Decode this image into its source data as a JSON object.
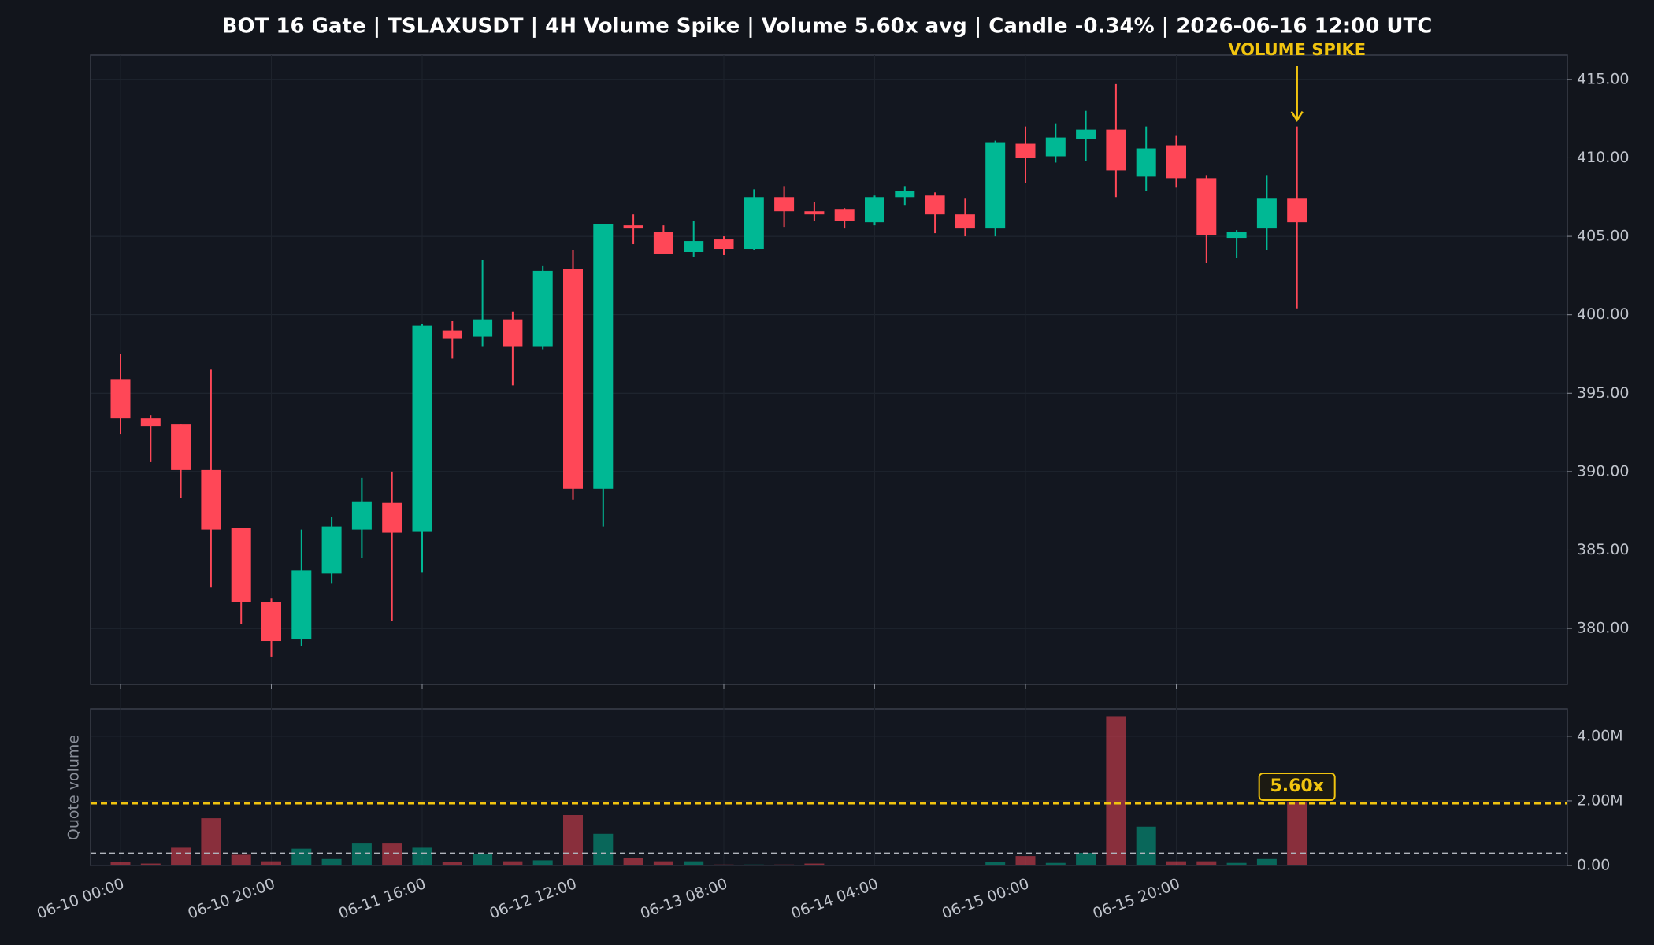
{
  "chart_data": [
    {
      "type": "candlestick",
      "title": "BOT 16 Gate | TSLAXUSDT | 4H Volume Spike | Volume 5.60x avg | Candle -0.34% | 2026-06-16 12:00 UTC",
      "categories": [
        "06-10 00:00",
        null,
        null,
        null,
        null,
        "06-10 20:00",
        null,
        null,
        null,
        null,
        "06-11 16:00",
        null,
        null,
        null,
        null,
        "06-12 12:00",
        null,
        null,
        null,
        null,
        "06-13 08:00",
        null,
        null,
        null,
        null,
        "06-14 04:00",
        null,
        null,
        null,
        null,
        "06-15 00:00",
        null,
        null,
        null,
        null,
        "06-15 20:00",
        null,
        null,
        null,
        null
      ],
      "open": [
        395.9,
        393.4,
        393.0,
        390.1,
        386.4,
        381.7,
        379.3,
        383.5,
        386.3,
        388.0,
        386.2,
        399.0,
        398.6,
        399.7,
        398.0,
        402.9,
        388.9,
        405.7,
        405.3,
        404.0,
        404.8,
        404.2,
        407.5,
        406.6,
        406.7,
        405.9,
        407.5,
        407.6,
        406.4,
        405.5,
        410.9,
        410.1,
        411.2,
        411.8,
        408.8,
        410.8,
        408.7,
        404.9,
        405.5,
        407.4
      ],
      "high": [
        397.5,
        393.6,
        393.0,
        396.5,
        386.3,
        381.9,
        386.3,
        387.1,
        389.6,
        390.0,
        399.4,
        399.6,
        403.5,
        400.2,
        403.1,
        404.1,
        405.8,
        406.4,
        405.7,
        406.0,
        405.0,
        408.0,
        408.2,
        407.2,
        406.8,
        407.6,
        408.2,
        407.8,
        407.4,
        411.1,
        412.0,
        412.2,
        413.0,
        414.7,
        412.0,
        411.4,
        408.9,
        405.4,
        408.9,
        412.0
      ],
      "low": [
        392.4,
        390.6,
        388.3,
        382.6,
        380.3,
        378.2,
        378.9,
        382.9,
        384.5,
        380.5,
        383.6,
        397.2,
        398.0,
        395.5,
        397.8,
        388.2,
        386.5,
        404.5,
        403.9,
        403.7,
        403.8,
        404.1,
        405.6,
        406.0,
        405.5,
        405.7,
        407.0,
        405.2,
        405.0,
        405.0,
        408.4,
        409.7,
        409.8,
        407.5,
        407.9,
        408.1,
        403.3,
        403.6,
        404.1,
        400.4
      ],
      "close": [
        393.4,
        392.9,
        390.1,
        386.3,
        381.7,
        379.2,
        383.7,
        386.5,
        388.1,
        386.1,
        399.3,
        398.5,
        399.7,
        398.0,
        402.8,
        388.9,
        405.8,
        405.5,
        403.9,
        404.7,
        404.2,
        407.5,
        406.6,
        406.4,
        406.0,
        407.5,
        407.9,
        406.4,
        405.5,
        411.0,
        410.0,
        411.3,
        411.8,
        409.2,
        410.6,
        408.7,
        405.1,
        405.3,
        407.4,
        405.9
      ],
      "up_color": "#00b894",
      "down_color": "#ff4757",
      "ylim": [
        376.44,
        416.55
      ],
      "yticks": [
        {
          "value": 380,
          "label": "380.00"
        },
        {
          "value": 385,
          "label": "385.00"
        },
        {
          "value": 390,
          "label": "390.00"
        },
        {
          "value": 395,
          "label": "395.00"
        },
        {
          "value": 400,
          "label": "400.00"
        },
        {
          "value": 405,
          "label": "405.00"
        },
        {
          "value": 410,
          "label": "410.00"
        },
        {
          "value": 415,
          "label": "415.00"
        }
      ],
      "grid": true,
      "annotation": "VOLUME SPIKE",
      "annotation_color": "#f1c40f"
    },
    {
      "type": "bar",
      "ylabel": "Quote volume",
      "values": [
        100000,
        60000,
        550000,
        1460000,
        330000,
        130000,
        520000,
        200000,
        680000,
        680000,
        550000,
        100000,
        360000,
        130000,
        160000,
        1560000,
        980000,
        230000,
        130000,
        130000,
        30000,
        30000,
        30000,
        60000,
        10000,
        10000,
        10000,
        10000,
        10000,
        100000,
        290000,
        80000,
        390000,
        4620000,
        1200000,
        130000,
        130000,
        80000,
        200000,
        1950000
      ],
      "ylim": [
        0,
        4850000
      ],
      "yticks": [
        {
          "value": 0,
          "label": "0.00"
        },
        {
          "value": 2000000,
          "label": "2.00M"
        },
        {
          "value": 4000000,
          "label": "4.00M"
        }
      ],
      "grid": true,
      "average_line": 380000,
      "threshold_line": 1920000,
      "spike_label": "5.60x",
      "spike_color": "#f1c40f"
    }
  ]
}
